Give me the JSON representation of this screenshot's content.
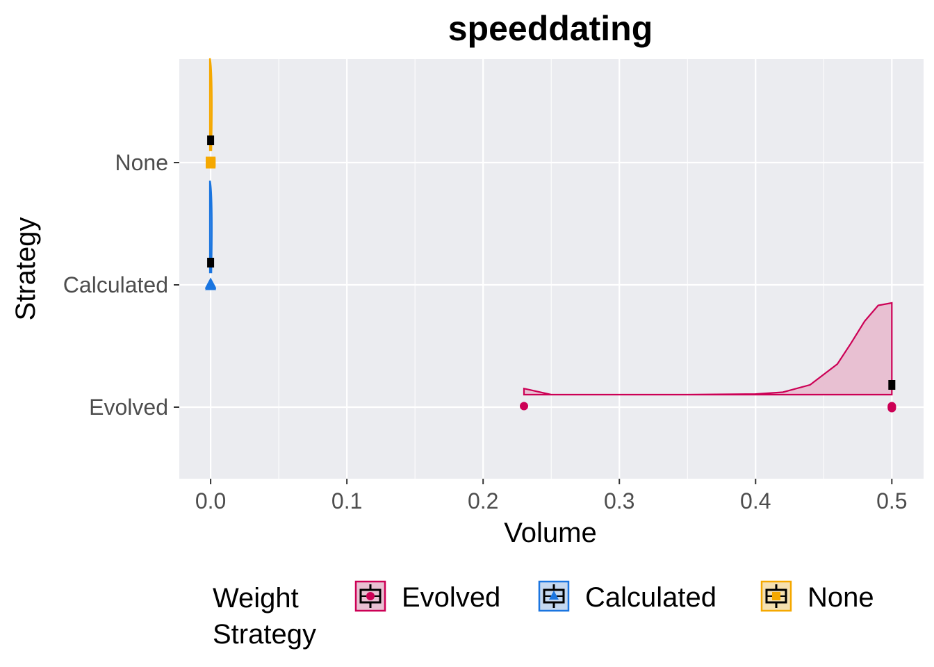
{
  "chart_data": {
    "type": "raincloud",
    "title": "speeddating",
    "xlabel": "Volume",
    "ylabel": "Strategy",
    "xlim": [
      -0.023,
      0.5233
    ],
    "x_ticks": [
      {
        "value": 0.0,
        "label": "0.0"
      },
      {
        "value": 0.1,
        "label": "0.1"
      },
      {
        "value": 0.2,
        "label": "0.2"
      },
      {
        "value": 0.3,
        "label": "0.3"
      },
      {
        "value": 0.4,
        "label": "0.4"
      },
      {
        "value": 0.5,
        "label": "0.5"
      }
    ],
    "categories": [
      "Evolved",
      "Calculated",
      "None"
    ],
    "grid": true,
    "legend": {
      "title_lines": [
        "Weight",
        "Strategy"
      ],
      "placement": "bottom",
      "entries": [
        "Evolved",
        "Calculated",
        "None"
      ]
    },
    "series": [
      {
        "name": "Evolved",
        "color": "#cc0055",
        "fill": "#e8c0d2",
        "marker": "circle",
        "points": [
          0.23,
          0.5,
          0.5,
          0.5,
          0.5
        ],
        "box": {
          "min": 0.5,
          "q1": 0.5,
          "median": 0.5,
          "q3": 0.5,
          "max": 0.5
        },
        "density": [
          [
            0.23,
            0.05
          ],
          [
            0.25,
            0.0
          ],
          [
            0.3,
            0.0
          ],
          [
            0.35,
            0.0
          ],
          [
            0.4,
            0.005
          ],
          [
            0.42,
            0.02
          ],
          [
            0.44,
            0.08
          ],
          [
            0.46,
            0.25
          ],
          [
            0.47,
            0.42
          ],
          [
            0.48,
            0.6
          ],
          [
            0.49,
            0.73
          ],
          [
            0.5,
            0.75
          ]
        ]
      },
      {
        "name": "Calculated",
        "color": "#1a75e0",
        "fill": "#c5d8f0",
        "marker": "triangle",
        "points": [
          0.0,
          0.0,
          0.0,
          0.0,
          0.0
        ],
        "box": {
          "min": 0.0,
          "q1": 0.0,
          "median": 0.0,
          "q3": 0.0,
          "max": 0.0
        },
        "density_width": 0.0005,
        "density_height": 0.75
      },
      {
        "name": "None",
        "color": "#f5a800",
        "fill": "#f5e0b0",
        "marker": "square",
        "points": [
          0.0,
          0.0,
          0.0,
          0.0,
          0.0
        ],
        "box": {
          "min": 0.0,
          "q1": 0.0,
          "median": 0.0,
          "q3": 0.0,
          "max": 0.0
        },
        "density_width": 0.0005,
        "density_height": 0.75
      }
    ]
  }
}
